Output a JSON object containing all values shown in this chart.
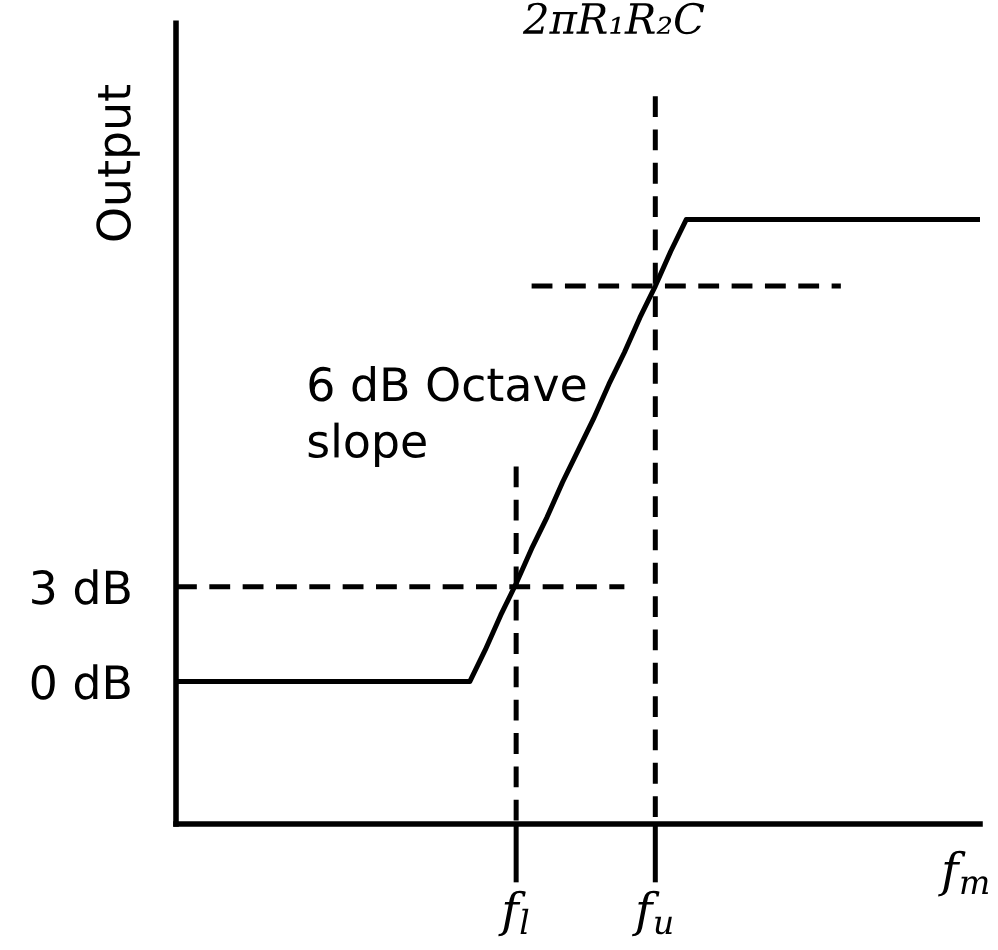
{
  "chart_data": {
    "type": "line",
    "title": "2πR₁R₂C",
    "ylabel": "Output",
    "xlabel": "f$_{m}$",
    "categories": [
      null,
      null,
      null,
      null,
      null,
      null,
      null,
      null,
      null,
      null,
      null,
      null,
      null,
      null,
      null,
      null,
      null,
      null,
      null,
      null,
      null,
      null,
      "f$_{l}$",
      null,
      null,
      null,
      null,
      null,
      null,
      null,
      null,
      "f$_{u}$",
      null,
      null,
      null,
      null,
      null,
      null,
      null,
      null,
      null,
      null,
      null,
      null,
      null,
      null,
      null,
      null,
      null,
      null,
      null,
      null,
      null
    ],
    "ylim": [
      -4.5,
      20.8
    ],
    "yticks": [
      {
        "value": 0,
        "label": "0 dB"
      },
      {
        "value": 3,
        "label": "3 dB"
      }
    ],
    "series": [
      {
        "values": [
          0,
          0,
          0,
          0,
          0,
          0,
          0,
          0,
          0,
          0,
          0,
          0,
          0,
          0,
          0,
          0,
          0,
          0,
          0,
          0,
          1.0,
          2.1,
          3.1,
          4.2,
          5.2,
          6.3,
          7.3,
          8.3,
          9.4,
          10.4,
          11.5,
          12.5,
          13.6,
          14.6,
          14.6,
          14.6,
          14.6,
          14.6,
          14.6,
          14.6,
          14.6,
          14.6,
          14.6,
          14.6,
          14.6,
          14.6,
          14.6,
          14.6,
          14.6,
          14.6,
          14.6,
          14.6,
          14.6
        ],
        "color": "#000000",
        "line_style": "solid"
      },
      {
        "values": [
          3,
          3,
          3,
          3,
          3,
          3,
          3,
          3,
          3,
          3,
          3,
          3,
          3,
          3,
          3,
          3,
          3,
          3,
          3,
          3,
          3,
          3,
          3,
          3,
          3,
          3,
          3,
          3,
          3,
          3,
          null,
          null,
          null,
          null,
          null,
          null,
          null,
          null,
          null,
          null,
          null,
          null,
          null,
          null,
          null,
          null,
          null,
          null,
          null,
          null,
          null,
          null,
          null
        ],
        "color": "#000000",
        "line_style": "dashed"
      },
      {
        "values": [
          null,
          null,
          null,
          null,
          null,
          null,
          null,
          null,
          null,
          null,
          null,
          null,
          null,
          null,
          null,
          null,
          null,
          null,
          null,
          null,
          null,
          null,
          null,
          12.5,
          12.5,
          12.5,
          12.5,
          12.5,
          12.5,
          12.5,
          12.5,
          12.5,
          12.5,
          12.5,
          12.5,
          12.5,
          12.5,
          12.5,
          12.5,
          12.5,
          12.5,
          12.5,
          12.5,
          12.5,
          null,
          null,
          null,
          null,
          null,
          null,
          null,
          null,
          null
        ],
        "color": "#000000",
        "line_style": "dashed"
      },
      {
        "x": [
          "f$_{l}$",
          "f$_{l}$"
        ],
        "values": [
          6.8,
          -4.5
        ],
        "color": "#000000",
        "line_style": "dashed"
      },
      {
        "x": [
          "f$_{u}$",
          "f$_{u}$"
        ],
        "values": [
          18.5,
          -4.5
        ],
        "color": "#000000",
        "line_style": "dashed"
      }
    ],
    "annotations": [
      "6 dB Octave\nslope"
    ]
  }
}
